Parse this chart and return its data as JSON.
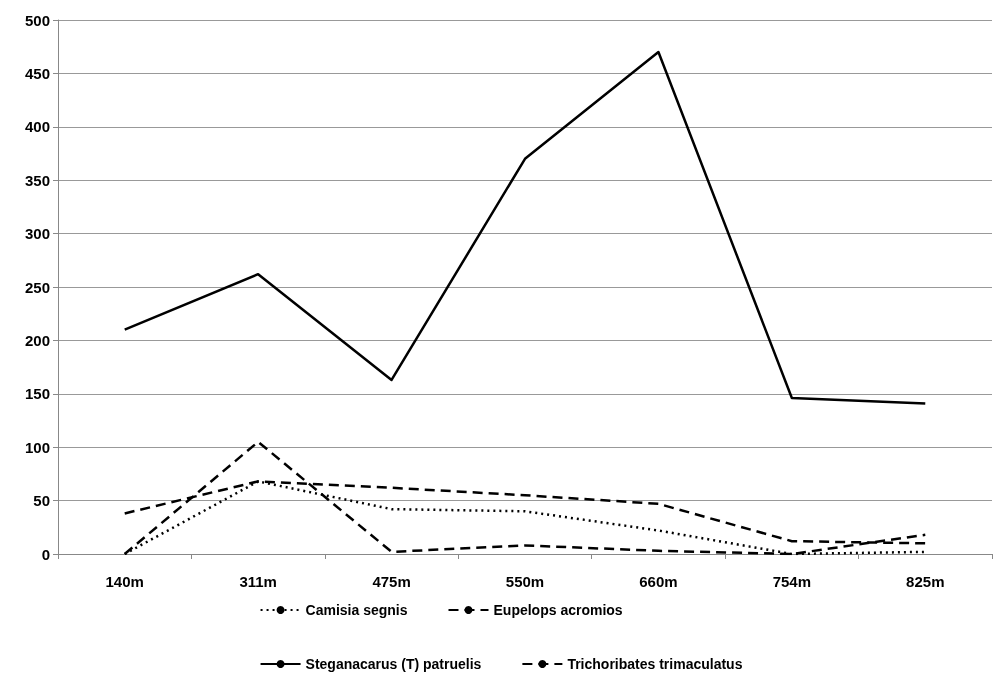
{
  "chart_data": {
    "type": "line",
    "categories": [
      "140m",
      "311m",
      "475m",
      "550m",
      "660m",
      "754m",
      "825m"
    ],
    "series": [
      {
        "name": "Camisia segnis",
        "color": "#000000",
        "line_style": "dotted",
        "values": [
          0,
          68,
          42,
          40,
          22,
          0,
          2
        ]
      },
      {
        "name": "Eupelops acromios",
        "color": "#000000",
        "line_style": "dashed",
        "values": [
          38,
          68,
          62,
          55,
          47,
          12,
          10
        ]
      },
      {
        "name": "Steganacarus (T) patruelis",
        "color": "#000000",
        "line_style": "solid",
        "values": [
          210,
          262,
          163,
          370,
          470,
          146,
          141
        ]
      },
      {
        "name": "Trichoribates trimaculatus",
        "color": "#000000",
        "line_style": "dashed",
        "values": [
          0,
          105,
          2,
          8,
          3,
          0,
          18
        ]
      }
    ],
    "ylim": [
      0,
      500
    ],
    "yticks": [
      0,
      50,
      100,
      150,
      200,
      250,
      300,
      350,
      400,
      450,
      500
    ],
    "grid": "y",
    "legend": "bottom",
    "marker": "none"
  }
}
